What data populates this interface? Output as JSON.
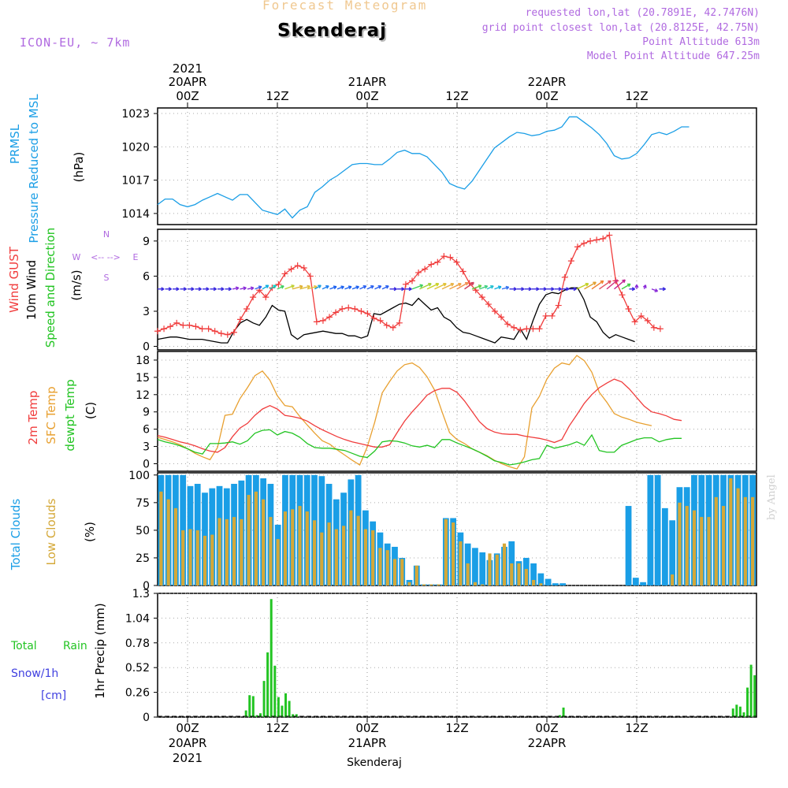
{
  "header": {
    "forecast_title": "Forecast Meteogram",
    "station": "Skenderaj",
    "model": "ICON-EU, ~ 7km",
    "requested": "requested lon,lat (20.7891E, 42.7476N)",
    "closest": "grid point closest lon,lat (20.8125E, 42.75N)",
    "point_alt": "Point Altitude 613m",
    "model_alt": "Model Point Altitude 647.25m",
    "footer_station": "Skenderaj",
    "watermark": "by Angel"
  },
  "colors": {
    "pressure": "#1a9ee6",
    "gust": "#f03c3c",
    "wind": "#000000",
    "temp2m": "#f03c3c",
    "sfc": "#e8a030",
    "dewpt": "#22c422",
    "total_clouds": "#1a9ee6",
    "low_clouds": "#d4a838",
    "rain": "#22c422",
    "label_purple": "#b06ae0",
    "snow": "#4040e0"
  },
  "chart_data": {
    "type": "multi-panel meteogram",
    "time_axis": {
      "x_start": -4,
      "x_end": 60,
      "top_ticks": [
        {
          "x": 0,
          "l1": "2021",
          "l2": "20APR",
          "l3": "00Z"
        },
        {
          "x": 12,
          "l1": "",
          "l2": "",
          "l3": "12Z"
        },
        {
          "x": 24,
          "l1": "",
          "l2": "21APR",
          "l3": "00Z"
        },
        {
          "x": 36,
          "l1": "",
          "l2": "",
          "l3": "12Z"
        },
        {
          "x": 48,
          "l1": "",
          "l2": "22APR",
          "l3": "00Z"
        },
        {
          "x": 60,
          "l1": "",
          "l2": "",
          "l3": "12Z"
        }
      ],
      "bottom_ticks": [
        {
          "x": 0,
          "l1": "00Z",
          "l2": "20APR",
          "l3": "2021"
        },
        {
          "x": 12,
          "l1": "12Z",
          "l2": "",
          "l3": ""
        },
        {
          "x": 24,
          "l1": "00Z",
          "l2": "21APR",
          "l3": ""
        },
        {
          "x": 36,
          "l1": "12Z",
          "l2": "",
          "l3": ""
        },
        {
          "x": 48,
          "l1": "00Z",
          "l2": "22APR",
          "l3": ""
        },
        {
          "x": 60,
          "l1": "12Z",
          "l2": "",
          "l3": ""
        }
      ]
    },
    "pressure": {
      "labels": [
        "PRMSL",
        "Pressure Reduced to MSL",
        "(hPa)"
      ],
      "ylim": [
        1013,
        1023.5
      ],
      "ticks": [
        1014,
        1017,
        1020,
        1023
      ],
      "values": [
        1014.8,
        1015.3,
        1015.3,
        1014.8,
        1014.6,
        1014.8,
        1015.2,
        1015.5,
        1015.8,
        1015.5,
        1015.2,
        1015.7,
        1015.7,
        1015.0,
        1014.3,
        1014.1,
        1013.9,
        1014.4,
        1013.6,
        1014.3,
        1014.6,
        1015.9,
        1016.4,
        1017.0,
        1017.4,
        1017.9,
        1018.4,
        1018.5,
        1018.5,
        1018.4,
        1018.4,
        1018.9,
        1019.5,
        1019.7,
        1019.4,
        1019.4,
        1019.1,
        1018.4,
        1017.7,
        1016.7,
        1016.4,
        1016.2,
        1016.9,
        1017.9,
        1018.9,
        1019.9,
        1020.4,
        1020.9,
        1021.3,
        1021.2,
        1021.0,
        1021.1,
        1021.4,
        1021.5,
        1021.8,
        1022.7,
        1022.7,
        1022.2,
        1021.7,
        1021.1,
        1020.3,
        1019.2,
        1018.9,
        1019.0,
        1019.4,
        1020.2,
        1021.1,
        1021.3,
        1021.1,
        1021.4,
        1021.8,
        1021.8
      ]
    },
    "wind": {
      "labels": [
        "Wind GUST",
        "10m Wind",
        "Speed and Direction",
        "(m/s)"
      ],
      "ylim": [
        -0.3,
        10
      ],
      "ticks": [
        0,
        3,
        6,
        9
      ],
      "compass": [
        "N",
        "<-- -->",
        "W",
        "E",
        "S"
      ],
      "gust": [
        1.3,
        1.5,
        1.7,
        2.0,
        1.8,
        1.8,
        1.7,
        1.5,
        1.5,
        1.3,
        1.1,
        1.0,
        1.2,
        2.3,
        3.2,
        4.2,
        4.8,
        4.2,
        5.0,
        5.3,
        6.2,
        6.6,
        6.9,
        6.7,
        6.0,
        2.1,
        2.2,
        2.5,
        2.9,
        3.2,
        3.3,
        3.2,
        3.0,
        2.8,
        2.4,
        2.2,
        1.8,
        1.6,
        2.0,
        5.3,
        5.6,
        6.3,
        6.6,
        7.0,
        7.2,
        7.7,
        7.6,
        7.2,
        6.4,
        5.4,
        4.8,
        4.2,
        3.6,
        3.0,
        2.5,
        1.9,
        1.6,
        1.4,
        1.5,
        1.5,
        1.5,
        2.6,
        2.6,
        3.5,
        5.9,
        7.3,
        8.5,
        8.8,
        9.0,
        9.1,
        9.2,
        9.5,
        5.6,
        4.4,
        3.2,
        2.1,
        2.6,
        2.2,
        1.6,
        1.5
      ],
      "speed": [
        0.6,
        0.7,
        0.8,
        0.8,
        0.7,
        0.6,
        0.6,
        0.6,
        0.5,
        0.4,
        0.3,
        0.3,
        1.3,
        2.0,
        2.3,
        2.0,
        1.8,
        2.5,
        3.5,
        3.1,
        3.0,
        1.0,
        0.6,
        1.0,
        1.1,
        1.2,
        1.3,
        1.2,
        1.1,
        1.1,
        0.9,
        0.9,
        0.7,
        0.9,
        2.8,
        2.7,
        3.0,
        3.3,
        3.6,
        3.7,
        3.5,
        4.1,
        3.6,
        3.1,
        3.3,
        2.5,
        2.2,
        1.6,
        1.2,
        1.1,
        0.9,
        0.7,
        0.5,
        0.3,
        0.8,
        0.7,
        0.6,
        1.5,
        0.6,
        2.2,
        3.6,
        4.4,
        4.6,
        4.5,
        4.8,
        5.0,
        5.0,
        4.0,
        2.5,
        2.1,
        1.2,
        0.7,
        1.0,
        0.8,
        0.6,
        0.4
      ],
      "arrow_colors": [
        "#3a2ae0",
        "#3a2ae0",
        "#3a2ae0",
        "#3a2ae0",
        "#3a2ae0",
        "#3a2ae0",
        "#3a2ae0",
        "#3a2ae0",
        "#3a2ae0",
        "#3a2ae0",
        "#8a2ad8",
        "#8a2ad8",
        "#8a2ad8",
        "#3060f0",
        "#10b0e0",
        "#10d0c0",
        "#40d060",
        "#c0d030",
        "#e0b030",
        "#e0c040",
        "#e0c040",
        "#1ea0e0",
        "#2080f0",
        "#1a60f0",
        "#1a60f0",
        "#1a60f0",
        "#1a60f0",
        "#2a60f0",
        "#2a60f0",
        "#2a60f0",
        "#2a60f0",
        "#3a2ae0",
        "#3a2ae0",
        "#3a2ae0",
        "#40d060",
        "#a0d030",
        "#c8d020",
        "#e0c030",
        "#e8b040",
        "#f0a040",
        "#f09050",
        "#d04060",
        "#60d040",
        "#40d080",
        "#20c0d0",
        "#10b0e0",
        "#3070f0",
        "#3a2ae0",
        "#3a2ae0",
        "#3a2ae0",
        "#3a2ae0",
        "#3a2ae0",
        "#3a2ae0",
        "#3a2ae0",
        "#3a2ae0",
        "#3a2ae0",
        "#c0d020",
        "#e0a030",
        "#f08030",
        "#e05060",
        "#d03080",
        "#c02090",
        "#40d040",
        "#3a2ae0",
        "#8a2ad8",
        "#8a2ad8",
        "#8a2ad8",
        "#3a2ae0"
      ],
      "arrow_dirs": [
        0,
        0,
        0,
        0,
        0,
        0,
        0,
        0,
        0,
        0,
        10,
        10,
        10,
        20,
        30,
        30,
        25,
        20,
        15,
        15,
        15,
        30,
        25,
        20,
        20,
        20,
        20,
        25,
        25,
        25,
        25,
        0,
        0,
        0,
        20,
        25,
        25,
        25,
        25,
        25,
        30,
        35,
        20,
        20,
        25,
        20,
        15,
        0,
        0,
        0,
        0,
        0,
        0,
        0,
        0,
        0,
        25,
        30,
        35,
        35,
        40,
        40,
        30,
        0,
        90,
        70,
        -20,
        0
      ],
      "arrow_len": [
        0.9,
        0.9,
        0.9,
        0.9,
        0.9,
        0.9,
        0.9,
        0.9,
        0.9,
        0.9,
        0.9,
        0.9,
        0.9,
        1.0,
        1.0,
        1.0,
        1.0,
        1.4,
        1.5,
        1.5,
        1.4,
        1.0,
        1.0,
        1.0,
        1.0,
        1.0,
        1.0,
        1.0,
        1.0,
        1.0,
        1.0,
        1.0,
        1.0,
        1.0,
        1.6,
        1.8,
        1.8,
        1.8,
        1.8,
        1.8,
        1.8,
        1.6,
        1.4,
        1.2,
        1.0,
        1.0,
        1.0,
        1.0,
        1.0,
        1.0,
        1.0,
        1.0,
        1.0,
        1.0,
        1.0,
        1.0,
        1.8,
        1.9,
        2.0,
        2.0,
        2.0,
        2.0,
        1.4,
        0.8,
        0.6,
        0.6,
        0.9,
        0.9
      ]
    },
    "temp": {
      "labels": [
        "2m Temp",
        "SFC Temp",
        "dewpt Temp",
        "(C)"
      ],
      "ylim": [
        -1.3,
        19.5
      ],
      "ticks": [
        0,
        3,
        6,
        9,
        12,
        15,
        18
      ],
      "temp2m": [
        4.9,
        4.6,
        4.2,
        3.8,
        3.5,
        3.1,
        2.6,
        2.2,
        2.0,
        2.8,
        4.7,
        6.2,
        7.0,
        8.4,
        9.5,
        10.1,
        9.5,
        8.4,
        8.2,
        7.9,
        7.4,
        6.6,
        5.9,
        5.3,
        4.7,
        4.2,
        3.8,
        3.5,
        3.2,
        2.9,
        2.9,
        3.3,
        5.4,
        7.4,
        9.0,
        10.4,
        11.9,
        12.7,
        13.1,
        13.1,
        12.4,
        10.9,
        9.1,
        7.3,
        6.1,
        5.5,
        5.2,
        5.1,
        5.1,
        4.8,
        4.6,
        4.4,
        4.1,
        3.7,
        4.2,
        6.6,
        8.5,
        10.5,
        12.0,
        13.2,
        14.0,
        14.7,
        14.2,
        13.0,
        11.5,
        10.0,
        9.0,
        8.7,
        8.3,
        7.7,
        7.5
      ],
      "sfc": [
        4.6,
        4.2,
        3.8,
        3.3,
        2.6,
        1.8,
        1.2,
        0.7,
        2.8,
        8.4,
        8.6,
        11.3,
        13.2,
        15.3,
        16.1,
        14.5,
        11.8,
        10.1,
        9.9,
        8.2,
        6.7,
        5.3,
        4.0,
        3.4,
        2.4,
        1.5,
        0.6,
        -0.2,
        2.9,
        7.2,
        12.3,
        14.3,
        16.1,
        17.2,
        17.5,
        16.7,
        15.1,
        12.8,
        9.0,
        5.4,
        4.2,
        3.5,
        2.6,
        2.0,
        1.4,
        0.6,
        0.0,
        -0.5,
        -0.9,
        1.2,
        9.7,
        11.7,
        14.7,
        16.6,
        17.5,
        17.2,
        18.8,
        17.9,
        15.9,
        12.4,
        10.7,
        8.7,
        8.1,
        7.7,
        7.2,
        6.9,
        6.6
      ],
      "dewpt": [
        4.2,
        3.8,
        3.5,
        3.1,
        2.6,
        2.0,
        1.7,
        3.5,
        3.5,
        3.6,
        3.8,
        3.4,
        4.0,
        5.3,
        5.8,
        5.9,
        5.0,
        5.6,
        5.3,
        4.6,
        3.5,
        2.8,
        2.7,
        2.7,
        2.5,
        2.3,
        1.8,
        1.3,
        1.1,
        2.2,
        3.8,
        4.0,
        3.9,
        3.6,
        3.1,
        2.9,
        3.2,
        2.8,
        4.2,
        4.2,
        3.6,
        3.1,
        2.6,
        2.0,
        1.3,
        0.5,
        0.2,
        -0.2,
        0.0,
        0.3,
        0.7,
        0.9,
        3.2,
        2.7,
        3.0,
        3.3,
        3.8,
        3.2,
        5.0,
        2.3,
        2.0,
        2.0,
        3.2,
        3.7,
        4.2,
        4.5,
        4.5,
        3.8,
        4.2,
        4.4,
        4.4
      ]
    },
    "clouds": {
      "labels": [
        "Total Clouds",
        "Low Clouds",
        "(%)"
      ],
      "ylim": [
        0,
        102
      ],
      "ticks": [
        0,
        25,
        50,
        75,
        100
      ],
      "total": [
        100,
        100,
        100,
        100,
        90,
        92,
        84,
        88,
        90,
        88,
        92,
        95,
        100,
        100,
        97,
        92,
        55,
        100,
        100,
        100,
        100,
        100,
        99,
        92,
        78,
        84,
        96,
        100,
        68,
        58,
        48,
        38,
        35,
        25,
        5,
        18,
        1,
        1,
        1,
        61,
        61,
        48,
        38,
        34,
        30,
        23,
        29,
        35,
        40,
        22,
        25,
        20,
        11,
        6,
        2,
        2,
        0,
        0,
        0,
        0,
        0,
        0,
        0,
        0,
        72,
        7,
        3,
        100,
        100,
        70,
        59,
        89,
        89,
        100,
        100,
        100,
        100,
        100,
        100,
        100,
        100,
        100
      ],
      "low": [
        85,
        78,
        70,
        50,
        51,
        50,
        45,
        46,
        61,
        60,
        62,
        60,
        82,
        85,
        78,
        62,
        42,
        67,
        69,
        72,
        67,
        59,
        48,
        57,
        51,
        54,
        68,
        63,
        51,
        50,
        34,
        32,
        24,
        24,
        3,
        18,
        1,
        1,
        1,
        60,
        57,
        40,
        20,
        3,
        1,
        29,
        28,
        38,
        20,
        20,
        15,
        5,
        2,
        0,
        0,
        0,
        0,
        0,
        0,
        0,
        0,
        0,
        0,
        0,
        0,
        0,
        0,
        0,
        0,
        0,
        10,
        75,
        72,
        68,
        62,
        62,
        80,
        72,
        97,
        88,
        80,
        80
      ],
      "layout_order": "bar series"
    },
    "precip": {
      "labels": [
        "1hr Precip (mm)"
      ],
      "side_labels": {
        "total": "Total",
        "rain": "Rain",
        "snow": "Snow/1h",
        "unit": "[cm]"
      },
      "ylim": [
        0,
        1.3
      ],
      "ticks": [
        0,
        0.26,
        0.52,
        0.78,
        1.04,
        1.3
      ],
      "values": [
        0,
        0,
        0,
        0,
        0,
        0,
        0,
        0,
        0,
        0,
        0,
        0,
        0,
        0,
        0,
        0,
        0,
        0,
        0,
        0,
        0,
        0,
        0,
        0,
        0.07,
        0.23,
        0.22,
        0.02,
        0.04,
        0.38,
        0.68,
        1.24,
        0.54,
        0.21,
        0.12,
        0.25,
        0.17,
        0.03,
        0.03,
        0,
        0,
        0,
        0,
        0,
        0,
        0,
        0,
        0,
        0,
        0,
        0,
        0,
        0,
        0,
        0,
        0,
        0,
        0,
        0,
        0,
        0,
        0,
        0,
        0,
        0,
        0,
        0,
        0,
        0,
        0,
        0,
        0,
        0,
        0,
        0,
        0,
        0,
        0,
        0,
        0,
        0,
        0,
        0,
        0,
        0,
        0,
        0,
        0,
        0,
        0,
        0,
        0,
        0,
        0,
        0,
        0,
        0,
        0,
        0,
        0,
        0,
        0,
        0,
        0,
        0,
        0,
        0,
        0,
        0,
        0,
        0,
        0.02,
        0.1,
        0,
        0,
        0,
        0,
        0,
        0,
        0,
        0,
        0,
        0,
        0,
        0,
        0,
        0,
        0,
        0,
        0,
        0,
        0,
        0,
        0,
        0,
        0,
        0,
        0,
        0,
        0,
        0,
        0,
        0,
        0,
        0,
        0,
        0,
        0,
        0,
        0,
        0,
        0,
        0,
        0,
        0,
        0,
        0,
        0,
        0,
        0.09,
        0.13,
        0.11,
        0.05,
        0.31,
        0.55,
        0.44
      ]
    }
  }
}
